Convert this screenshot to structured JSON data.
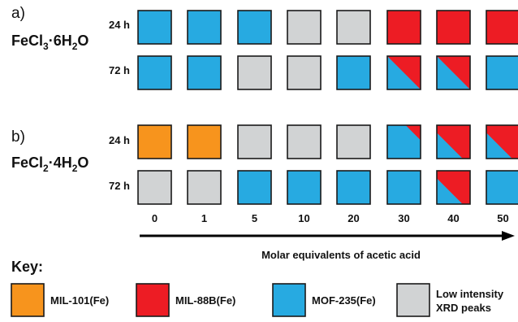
{
  "colors": {
    "MIL-101(Fe)": "#f7941d",
    "MIL-88B(Fe)": "#ed1c24",
    "MOF-235(Fe)": "#27aae1",
    "Low intensity XRD peaks": "#d1d3d4",
    "border": "#1a1a1a"
  },
  "x_axis": {
    "ticks": [
      "0",
      "1",
      "5",
      "10",
      "20",
      "30",
      "40",
      "50"
    ],
    "label": "Molar equivalents of acetic acid"
  },
  "panels": [
    {
      "label": "a)",
      "compound": {
        "main": "FeCl",
        "sub1": "3",
        "mid": "·6H",
        "sub2": "2",
        "end": "O"
      },
      "rows": [
        {
          "time": "24 h",
          "cells": [
            {
              "main": "MOF-235(Fe)"
            },
            {
              "main": "MOF-235(Fe)"
            },
            {
              "main": "MOF-235(Fe)"
            },
            {
              "main": "Low intensity XRD peaks"
            },
            {
              "main": "Low intensity XRD peaks"
            },
            {
              "main": "MIL-88B(Fe)"
            },
            {
              "main": "MIL-88B(Fe)"
            },
            {
              "main": "MIL-88B(Fe)"
            }
          ]
        },
        {
          "time": "72 h",
          "cells": [
            {
              "main": "MOF-235(Fe)"
            },
            {
              "main": "MOF-235(Fe)"
            },
            {
              "main": "Low intensity XRD peaks"
            },
            {
              "main": "Low intensity XRD peaks"
            },
            {
              "main": "MOF-235(Fe)"
            },
            {
              "main": "MOF-235(Fe)",
              "minor": "MIL-88B(Fe)",
              "fraction": 0.5
            },
            {
              "main": "MOF-235(Fe)",
              "minor": "MIL-88B(Fe)",
              "fraction": 0.5
            },
            {
              "main": "MOF-235(Fe)"
            }
          ]
        }
      ]
    },
    {
      "label": "b)",
      "compound": {
        "main": "FeCl",
        "sub1": "2",
        "mid": "·4H",
        "sub2": "2",
        "end": "O"
      },
      "rows": [
        {
          "time": "24 h",
          "cells": [
            {
              "main": "MIL-101(Fe)"
            },
            {
              "main": "MIL-101(Fe)"
            },
            {
              "main": "Low intensity XRD peaks"
            },
            {
              "main": "Low intensity XRD peaks"
            },
            {
              "main": "Low intensity XRD peaks"
            },
            {
              "main": "MOF-235(Fe)",
              "minor": "MIL-88B(Fe)",
              "fraction": 0.1
            },
            {
              "main": "MOF-235(Fe)",
              "minor": "MIL-88B(Fe)",
              "fraction": 0.7
            },
            {
              "main": "MOF-235(Fe)",
              "minor": "MIL-88B(Fe)",
              "fraction": 0.7
            }
          ]
        },
        {
          "time": "72 h",
          "cells": [
            {
              "main": "Low intensity XRD peaks"
            },
            {
              "main": "Low intensity XRD peaks"
            },
            {
              "main": "MOF-235(Fe)"
            },
            {
              "main": "MOF-235(Fe)"
            },
            {
              "main": "MOF-235(Fe)"
            },
            {
              "main": "MOF-235(Fe)"
            },
            {
              "main": "MOF-235(Fe)",
              "minor": "MIL-88B(Fe)",
              "fraction": 0.7
            },
            {
              "main": "MOF-235(Fe)"
            }
          ]
        }
      ]
    }
  ],
  "key": {
    "title": "Key:",
    "items": [
      {
        "phase": "MIL-101(Fe)",
        "lines": [
          "MIL-101(Fe)"
        ]
      },
      {
        "phase": "MIL-88B(Fe)",
        "lines": [
          "MIL-88B(Fe)"
        ]
      },
      {
        "phase": "MOF-235(Fe)",
        "lines": [
          "MOF-235(Fe)"
        ]
      },
      {
        "phase": "Low intensity XRD peaks",
        "lines": [
          "Low intensity",
          "XRD peaks"
        ]
      }
    ]
  }
}
